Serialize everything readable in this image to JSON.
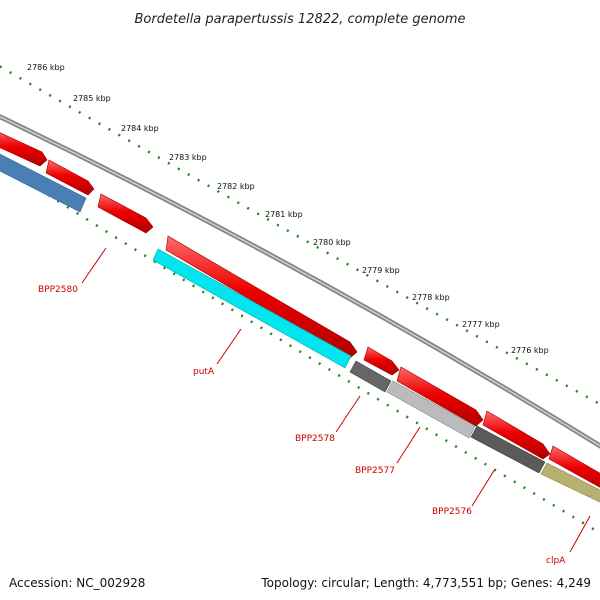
{
  "title": "Bordetella parapertussis 12822, complete genome",
  "footer": {
    "accession": "Accession: NC_002928",
    "summary": "Topology: circular; Length: 4,773,551 bp; Genes: 4,249"
  },
  "ruler": {
    "labels": [
      "2786 kbp",
      "2785 kbp",
      "2784 kbp",
      "2783 kbp",
      "2782 kbp",
      "2781 kbp",
      "2780 kbp",
      "2779 kbp",
      "2778 kbp",
      "2777 kbp",
      "2776 kbp"
    ]
  },
  "genes": {
    "labels": [
      "BPP2580",
      "putA",
      "BPP2578",
      "BPP2577",
      "BPP2576",
      "clpA"
    ]
  },
  "colors": {
    "forward_cds": "#ee0000",
    "backbone": "#888888",
    "bpp2580": "#4a7fb5",
    "putA": "#00e5ee",
    "bpp2578": "#666666",
    "bpp2577": "#bbbbbb",
    "bpp2576": "#5a5a5a",
    "clpA": "#b8b070",
    "tick": "#1a8a1a",
    "label": "#cc0000"
  }
}
